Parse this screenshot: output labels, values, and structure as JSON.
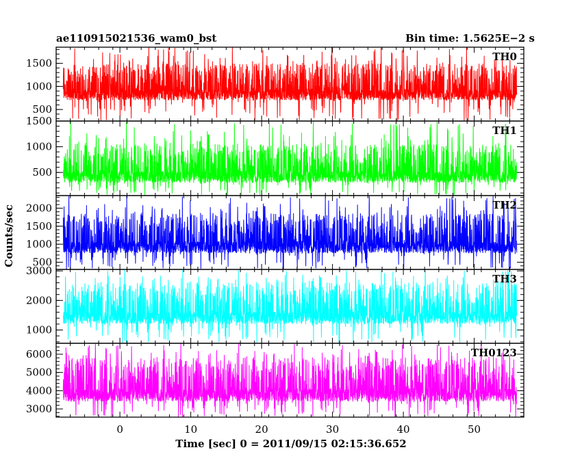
{
  "chart_data": {
    "type": "line",
    "title_left": "ae110915021536_wam0_bst",
    "title_right": "Bin time: 1.5625E−2 s",
    "xlabel": "Time [sec] 0 = 2011/09/15 02:15:36.652",
    "ylabel": "Counts/sec",
    "xlim": [
      -9,
      57
    ],
    "x_ticks": [
      0,
      10,
      20,
      30,
      40,
      50
    ],
    "x_tick_labels": [
      "0",
      "10",
      "20",
      "30",
      "40",
      "50"
    ],
    "x_data_range": [
      -8,
      56
    ],
    "panels": [
      {
        "name": "TH0",
        "color": "#ff0000",
        "ylim": [
          250,
          1850
        ],
        "y_ticks": [
          500,
          1000,
          1500
        ],
        "y_tick_labels": [
          "500",
          "1000",
          "1500"
        ],
        "typical_range": [
          700,
          1500
        ],
        "extreme_range": [
          250,
          1850
        ]
      },
      {
        "name": "TH1",
        "color": "#00ff00",
        "ylim": [
          50,
          1500
        ],
        "y_ticks": [
          500,
          1000,
          1500
        ],
        "y_tick_labels": [
          "500",
          "1000",
          "1500"
        ],
        "typical_range": [
          300,
          1050
        ],
        "extreme_range": [
          50,
          1500
        ]
      },
      {
        "name": "TH2",
        "color": "#0000ff",
        "ylim": [
          300,
          2350
        ],
        "y_ticks": [
          500,
          1000,
          1500,
          2000
        ],
        "y_tick_labels": [
          "500",
          "1000",
          "1500",
          "2000"
        ],
        "typical_range": [
          750,
          1850
        ],
        "extreme_range": [
          300,
          2350
        ]
      },
      {
        "name": "TH3",
        "color": "#00ffff",
        "ylim": [
          550,
          3050
        ],
        "y_ticks": [
          1000,
          2000,
          3000
        ],
        "y_tick_labels": [
          "1000",
          "2000",
          "3000"
        ],
        "typical_range": [
          1200,
          2600
        ],
        "extreme_range": [
          550,
          3050
        ]
      },
      {
        "name": "TH0123",
        "color": "#ff00ff",
        "ylim": [
          2550,
          6600
        ],
        "y_ticks": [
          3000,
          4000,
          5000,
          6000
        ],
        "y_tick_labels": [
          "3000",
          "4000",
          "5000",
          "6000"
        ],
        "typical_range": [
          3400,
          5800
        ],
        "extreme_range": [
          2550,
          6600
        ]
      }
    ]
  }
}
